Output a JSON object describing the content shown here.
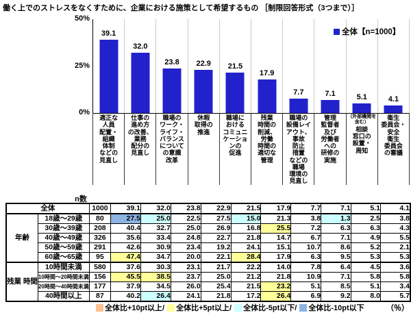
{
  "title": "働く上でのストレスをなくすために、企業における施策として希望するもの ［制限回答形式（3つまで）］",
  "colors": {
    "bar": "#2222CC",
    "plus10": "#FAC090",
    "plus5": "#FFFF99",
    "minus5": "#CCFFFF",
    "minus10": "#8DB4E2",
    "gridline": "#C9C9C9"
  },
  "chart_data": {
    "type": "bar",
    "title": "働く上でのストレスをなくすために、企業における施策として希望するもの ［制限回答形式（3つまで）］",
    "legend": "全体【n=1000】",
    "legend_position": "top-right",
    "ylim": [
      0,
      50
    ],
    "yticks": [
      "50%",
      "25%",
      "0%"
    ],
    "xlabel": "",
    "ylabel": "",
    "grid": "vertical",
    "values": [
      39.1,
      32.0,
      23.8,
      22.9,
      21.5,
      17.9,
      7.7,
      7.1,
      5.1,
      4.1
    ],
    "value_labels": [
      "39.1",
      "32.0",
      "23.8",
      "22.9",
      "21.5",
      "17.9",
      "7.7",
      "7.1",
      "5.1",
      "4.1"
    ],
    "categories": [
      {
        "note": "",
        "label": "適正な\n人員\n配置・\n組織\n体制\nなどの\n見直し"
      },
      {
        "note": "",
        "label": "仕事の\n進め方\nの改善、\n業務\n配分の\n見直し"
      },
      {
        "note": "",
        "label": "職場の\nワーク・\nライフ・\nバランス\nについて\nの意識\n改革"
      },
      {
        "note": "",
        "label": "休暇\n取得の\n推進"
      },
      {
        "note": "",
        "label": "職場に\nおける\nコミュニ\nケーショ\nンの\n促進"
      },
      {
        "note": "",
        "label": "残業\n時間の\n削減、\n労働\n時間の\n適切な\n管理"
      },
      {
        "note": "",
        "label": "職場の\n設備レイ\nアウト、\n事故\n防止\n措置\nなどの\n職場\n環境の\n見直し"
      },
      {
        "note": "",
        "label": "管理\n監督者\n及び\n労働者\nへの\n研修の\n実施"
      },
      {
        "note": "（外部機関を\n含む）",
        "label": "相談\n窓口の\n設置・\n周知"
      },
      {
        "note": "",
        "label": "衛生\n委員会・\n安全\n衛生\n委員会\nの審議"
      }
    ]
  },
  "table": {
    "n_header": "n数",
    "total_row": {
      "label": "全体",
      "n": "1000",
      "values": [
        "39.1",
        "32.0",
        "23.8",
        "22.9",
        "21.5",
        "17.9",
        "7.7",
        "7.1",
        "5.1",
        "4.1"
      ],
      "highlights": [
        "",
        "",
        "",
        "",
        "",
        "",
        "",
        "",
        "",
        ""
      ]
    },
    "groups": [
      {
        "label": "年齢",
        "rows": [
          {
            "label": "18歳～29歳",
            "n": "80",
            "values": [
              "27.5",
              "25.0",
              "22.5",
              "27.5",
              "15.0",
              "21.3",
              "3.8",
              "1.3",
              "2.5",
              "3.8"
            ],
            "highlights": [
              "minus10",
              "minus5",
              "",
              "",
              "minus5",
              "",
              "",
              "minus5",
              "",
              ""
            ]
          },
          {
            "label": "30歳～39歳",
            "n": "208",
            "values": [
              "40.4",
              "32.7",
              "25.0",
              "26.9",
              "16.8",
              "25.5",
              "7.2",
              "6.3",
              "6.3",
              "4.3"
            ],
            "highlights": [
              "",
              "",
              "",
              "",
              "",
              "plus5",
              "",
              "",
              "",
              ""
            ]
          },
          {
            "label": "40歳～49歳",
            "n": "326",
            "values": [
              "35.6",
              "33.4",
              "24.8",
              "22.7",
              "21.8",
              "14.7",
              "6.7",
              "7.1",
              "4.9",
              "5.5"
            ],
            "highlights": [
              "",
              "",
              "",
              "",
              "",
              "",
              "",
              "",
              "",
              ""
            ]
          },
          {
            "label": "50歳～59歳",
            "n": "291",
            "values": [
              "42.6",
              "30.9",
              "23.4",
              "19.2",
              "24.1",
              "15.1",
              "10.7",
              "8.6",
              "5.2",
              "2.1"
            ],
            "highlights": [
              "",
              "",
              "",
              "",
              "",
              "",
              "",
              "",
              "",
              ""
            ]
          },
          {
            "label": "60歳～65歳",
            "n": "95",
            "values": [
              "47.4",
              "34.7",
              "20.0",
              "22.1",
              "28.4",
              "17.9",
              "6.3",
              "9.5",
              "5.3",
              "5.3"
            ],
            "highlights": [
              "plus5",
              "",
              "",
              "",
              "plus5",
              "",
              "",
              "",
              "",
              ""
            ]
          }
        ]
      },
      {
        "label": "残業\n時間",
        "rows": [
          {
            "label": "10時間未満",
            "n": "580",
            "values": [
              "37.6",
              "30.3",
              "23.1",
              "21.7",
              "22.2",
              "14.0",
              "7.8",
              "6.4",
              "4.5",
              "3.6"
            ],
            "highlights": [
              "",
              "",
              "",
              "",
              "",
              "",
              "",
              "",
              "",
              ""
            ]
          },
          {
            "label": "10時間～20時間未満",
            "n": "156",
            "values": [
              "45.5",
              "38.5",
              "23.7",
              "25.0",
              "21.2",
              "21.8",
              "10.9",
              "7.1",
              "5.8",
              "5.8"
            ],
            "highlights": [
              "plus5",
              "plus5",
              "",
              "",
              "",
              "",
              "",
              "",
              "",
              ""
            ]
          },
          {
            "label": "20時間～40時間未満",
            "n": "177",
            "values": [
              "37.9",
              "34.5",
              "26.0",
              "25.4",
              "21.5",
              "23.2",
              "5.1",
              "8.5",
              "5.1",
              "3.4"
            ],
            "highlights": [
              "",
              "",
              "",
              "",
              "",
              "plus5",
              "",
              "",
              "",
              ""
            ]
          },
          {
            "label": "40時間以上",
            "n": "87",
            "values": [
              "40.2",
              "26.4",
              "24.1",
              "21.8",
              "17.2",
              "26.4",
              "6.9",
              "9.2",
              "8.0",
              "5.7"
            ],
            "highlights": [
              "",
              "minus5",
              "",
              "",
              "",
              "plus5",
              "",
              "",
              "",
              ""
            ]
          }
        ]
      }
    ]
  },
  "highlight_legend": {
    "items": [
      {
        "type": "plus10",
        "label": "全体比+10pt以上/"
      },
      {
        "type": "plus5",
        "label": "全体比+5pt以上/"
      },
      {
        "type": "minus5",
        "label": "全体比-5pt以下/"
      },
      {
        "type": "minus10",
        "label": "全体比-10pt以下"
      }
    ],
    "unit": "（％）"
  }
}
